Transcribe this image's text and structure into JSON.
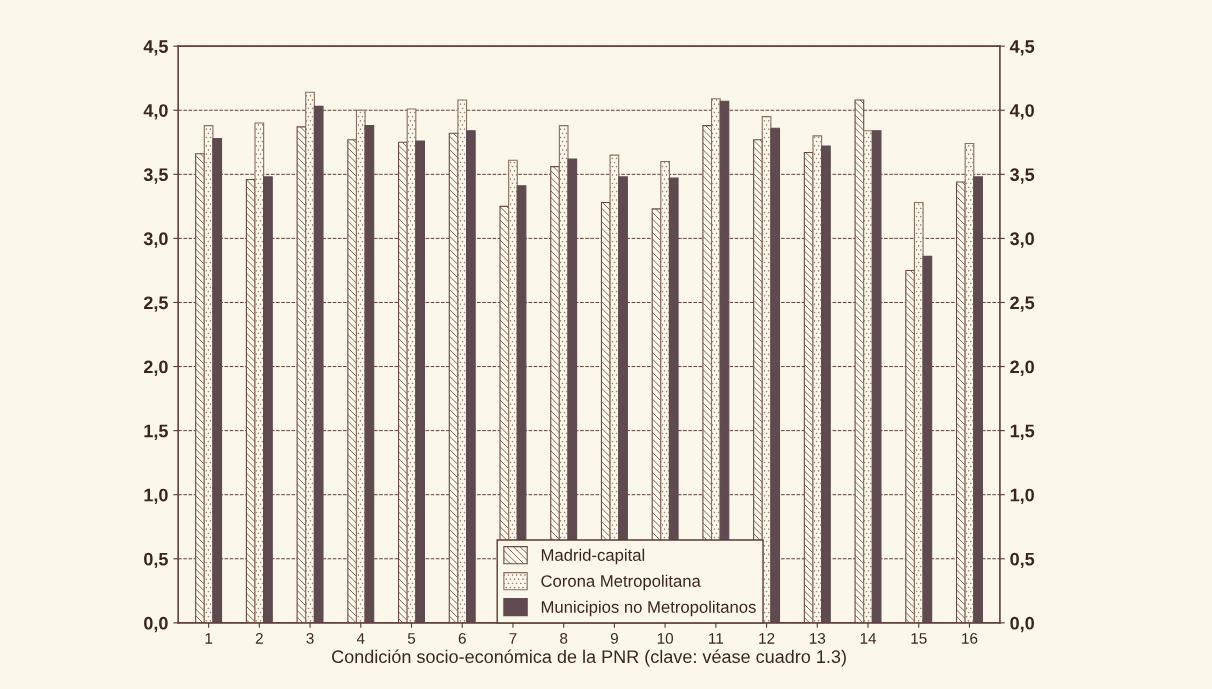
{
  "chart_data": {
    "type": "bar",
    "xlabel": "Condición socio-económica de la PNR (clave: véase cuadro 1.3)",
    "categories": [
      "1",
      "2",
      "3",
      "4",
      "5",
      "6",
      "7",
      "8",
      "9",
      "10",
      "11",
      "12",
      "13",
      "14",
      "15",
      "16"
    ],
    "series": [
      {
        "name": "Madrid-capital",
        "color": "#6a4a42",
        "values": [
          3.66,
          3.46,
          3.87,
          3.77,
          3.75,
          3.82,
          3.25,
          3.56,
          3.28,
          3.23,
          3.88,
          3.77,
          3.67,
          4.08,
          2.75,
          3.44
        ]
      },
      {
        "name": "Corona Metropolitana",
        "color": "#8a6e60",
        "values": [
          3.88,
          3.9,
          4.14,
          4.0,
          4.01,
          4.08,
          3.61,
          3.88,
          3.65,
          3.6,
          4.09,
          3.95,
          3.8,
          3.84,
          3.28,
          3.74
        ]
      },
      {
        "name": "Municipios no Metropolitanos",
        "color": "#5e4a4f",
        "values": [
          3.78,
          3.48,
          4.03,
          3.88,
          3.76,
          3.84,
          3.41,
          3.62,
          3.48,
          3.47,
          4.07,
          3.86,
          3.72,
          3.84,
          2.86,
          3.48
        ]
      }
    ],
    "ylim": [
      0,
      4.5
    ],
    "yticks": [
      {
        "value": 0,
        "label": "0,0"
      },
      {
        "value": 0.5,
        "label": "0,5"
      },
      {
        "value": 1,
        "label": "1,0"
      },
      {
        "value": 1.5,
        "label": "1,5"
      },
      {
        "value": 2,
        "label": "2,0"
      },
      {
        "value": 2.5,
        "label": "2,5"
      },
      {
        "value": 3,
        "label": "3,0"
      },
      {
        "value": 3.5,
        "label": "3,5"
      },
      {
        "value": 4,
        "label": "4,0"
      },
      {
        "value": 4.5,
        "label": "4,5"
      }
    ],
    "y2lim": [
      0,
      4.5
    ],
    "y2ticks": [
      {
        "value": 0,
        "label": "0,0"
      },
      {
        "value": 0.5,
        "label": "0,5"
      },
      {
        "value": 1,
        "label": "1,0"
      },
      {
        "value": 1.5,
        "label": "1,5"
      },
      {
        "value": 2,
        "label": "2,0"
      },
      {
        "value": 2.5,
        "label": "2,5"
      },
      {
        "value": 3,
        "label": "3,0"
      },
      {
        "value": 3.5,
        "label": "3,5"
      },
      {
        "value": 4,
        "label": "4,0"
      },
      {
        "value": 4.5,
        "label": "4,5"
      }
    ],
    "grid": "y",
    "legend": "bottom"
  }
}
